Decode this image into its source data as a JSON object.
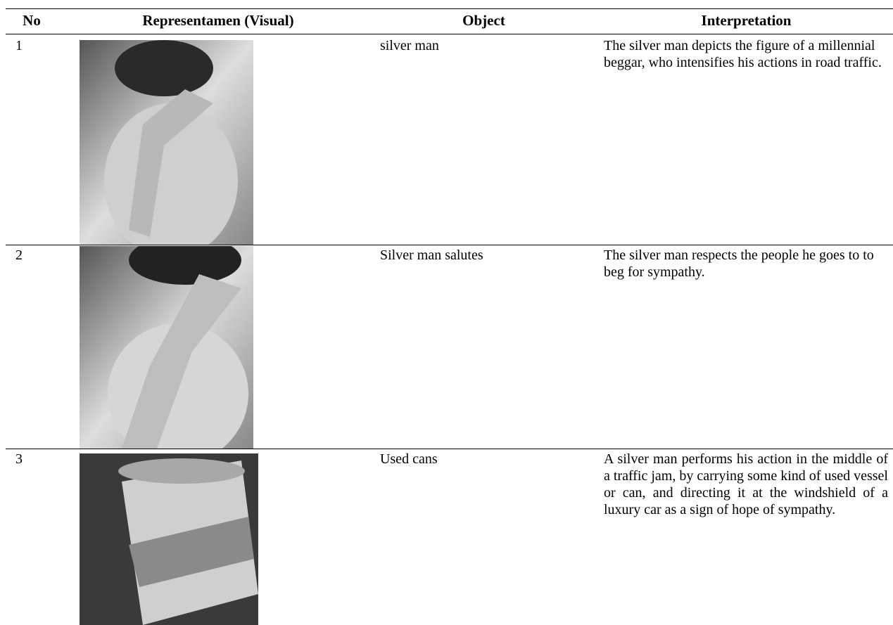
{
  "table": {
    "header": [
      "No",
      "Representamen (Visual)",
      "Object",
      "Interpretation"
    ],
    "rows": [
      {
        "no": "1",
        "object": "silver man",
        "interpretation": "The silver man depicts the figure of a millennial beggar, who intensifies his actions in road traffic."
      },
      {
        "no": "2",
        "object": "Silver man salutes",
        "interpretation": "The silver man respects the people he goes to to beg for sympathy."
      },
      {
        "no": "3",
        "object": "Used cans",
        "interpretation": "A silver man performs his action in the middle of a traffic jam, by carrying some kind of used vessel or can, and directing it at the windshield of a luxury car as a sign of hope of sympathy."
      }
    ]
  }
}
